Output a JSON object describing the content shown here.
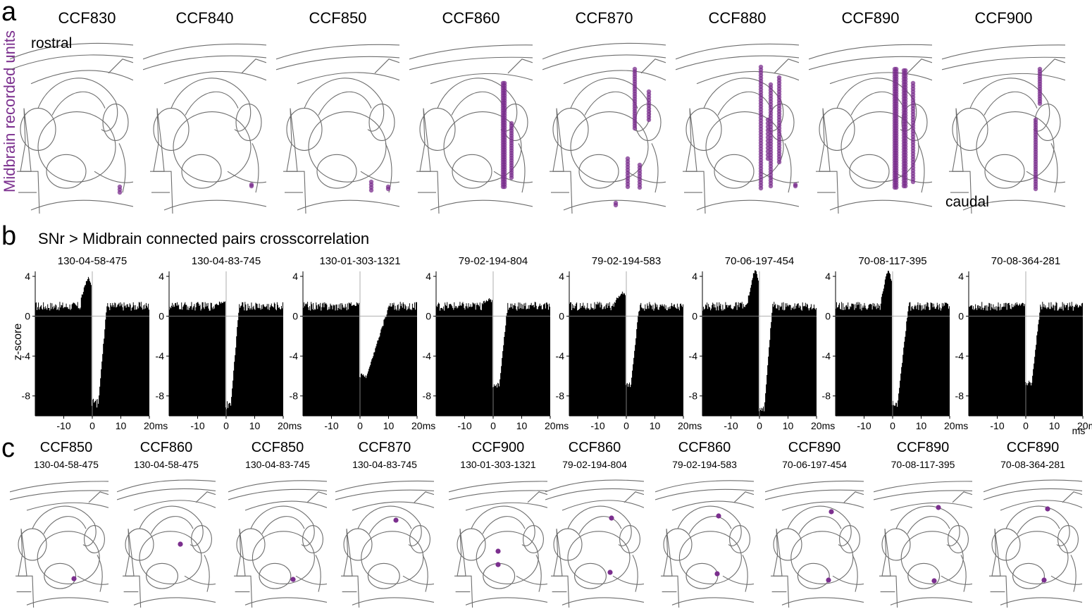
{
  "panel_a": {
    "label": "a",
    "ylabel": "Midbrain recorded units",
    "rostral": "rostral",
    "caudal": "caudal",
    "sections": [
      "CCF830",
      "CCF840",
      "CCF850",
      "CCF860",
      "CCF870",
      "CCF880",
      "CCF890",
      "CCF900"
    ],
    "unit_color": "#7b2f8e"
  },
  "panel_b": {
    "label": "b",
    "title": "SNr > Midbrain connected pairs crosscorrelation"
  },
  "panel_c": {
    "label": "c",
    "items": [
      {
        "ccf": "CCF850",
        "pair": "130-04-58-475"
      },
      {
        "ccf": "CCF860",
        "pair": "130-04-58-475"
      },
      {
        "ccf": "CCF850",
        "pair": "130-04-83-745"
      },
      {
        "ccf": "CCF870",
        "pair": "130-04-83-745"
      },
      {
        "ccf": "CCF900",
        "pair": "130-01-303-1321"
      },
      {
        "ccf": "CCF860",
        "pair": "79-02-194-804"
      },
      {
        "ccf": "CCF860",
        "pair": "79-02-194-583"
      },
      {
        "ccf": "CCF890",
        "pair": "70-06-197-454"
      },
      {
        "ccf": "CCF890",
        "pair": "70-08-117-395"
      },
      {
        "ccf": "CCF890",
        "pair": "70-08-364-281"
      }
    ]
  },
  "chart_data": [
    {
      "type": "bar",
      "title": "SNr > Midbrain connected pairs crosscorrelation",
      "ylabel": "z-score",
      "xunit": "ms",
      "xlim": [
        -20,
        20
      ],
      "ylim": [
        -10,
        4.5
      ],
      "xticks": [
        -10,
        0,
        10,
        20
      ],
      "xtick_labels": [
        "-10",
        "0",
        "10",
        "20ms"
      ],
      "yticks": [
        4,
        0,
        -4,
        -8
      ],
      "ytick_labels": [
        "4",
        "0",
        "-4",
        "-8"
      ],
      "series": [
        {
          "name": "130-04-58-475",
          "baseline": 1.0,
          "pre_peak": 3.8,
          "min": -9.2,
          "min_lag": 1.5,
          "recovery_ms": 3
        },
        {
          "name": "130-04-83-745",
          "baseline": 1.0,
          "pre_peak": 1.2,
          "min": -9.4,
          "min_lag": 1.0,
          "recovery_ms": 3
        },
        {
          "name": "130-01-303-1321",
          "baseline": 1.0,
          "pre_peak": 1.0,
          "min": -6.3,
          "min_lag": 1.5,
          "recovery_ms": 8
        },
        {
          "name": "79-02-194-804",
          "baseline": 1.0,
          "pre_peak": 1.5,
          "min": -7.4,
          "min_lag": 1.5,
          "recovery_ms": 3
        },
        {
          "name": "79-02-194-583",
          "baseline": 1.0,
          "pre_peak": 2.3,
          "min": -7.2,
          "min_lag": 1.0,
          "recovery_ms": 3
        },
        {
          "name": "70-06-197-454",
          "baseline": 1.0,
          "pre_peak": 4.7,
          "min": -10.0,
          "min_lag": 1.0,
          "recovery_ms": 3
        },
        {
          "name": "70-08-117-395",
          "baseline": 1.0,
          "pre_peak": 4.7,
          "min": -9.4,
          "min_lag": 1.0,
          "recovery_ms": 4
        },
        {
          "name": "70-08-364-281",
          "baseline": 1.0,
          "pre_peak": 1.0,
          "min": -7.0,
          "min_lag": 1.5,
          "recovery_ms": 3
        }
      ]
    }
  ]
}
